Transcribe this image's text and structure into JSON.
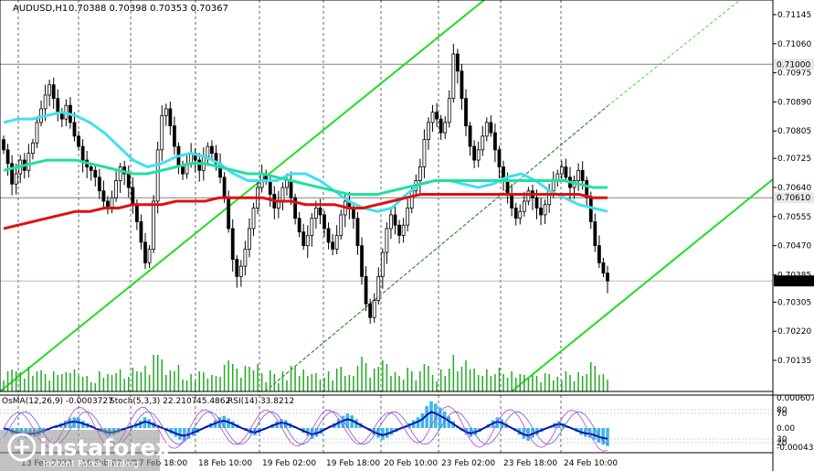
{
  "header": {
    "symbol": "AUDUSD,H1",
    "ohlc": "0.70388 0.70398 0.70353 0.70367"
  },
  "indicator_header": {
    "osma": "OsMA(12,26,9) -0.0003727",
    "stoch": "Stoch(5,3,3) 22.2107",
    "stoch_sig": "45.4862",
    "rsi": "RSI(14) 33.8212"
  },
  "brand": {
    "name": "instaforex",
    "tagline": "Instant Forex Trading"
  },
  "chart_data": {
    "type": "candlestick",
    "y_ticks": [
      "0.71145",
      "0.71060",
      "0.70975",
      "0.70890",
      "0.70805",
      "0.70725",
      "0.70640",
      "0.70555",
      "0.70470",
      "0.70385",
      "0.70305",
      "0.70220",
      "0.70135"
    ],
    "ylim": [
      0.70135,
      0.71145
    ],
    "x_ticks": [
      "13 Feb 2023",
      "16 Feb 02:00",
      "17 Feb 18:00",
      "18 Feb 10:00",
      "19 Feb 02:00",
      "19 Feb 18:00",
      "20 Feb 10:00",
      "23 Feb 02:00",
      "23 Feb 18:00",
      "24 Feb 10:00"
    ],
    "price_labels": [
      {
        "value": 0.71,
        "label": "0.71000",
        "style": "level"
      },
      {
        "value": 0.7061,
        "label": "0.70610",
        "style": "level"
      },
      {
        "value": 0.70367,
        "label": "0.70367",
        "style": "current"
      }
    ],
    "closes": [
      0.7075,
      0.7071,
      0.7065,
      0.7068,
      0.7072,
      0.7069,
      0.7074,
      0.7077,
      0.7083,
      0.7087,
      0.7091,
      0.7094,
      0.709,
      0.7086,
      0.7084,
      0.7088,
      0.7083,
      0.7079,
      0.7076,
      0.7072,
      0.707,
      0.7069,
      0.7067,
      0.7063,
      0.706,
      0.7058,
      0.7061,
      0.7066,
      0.707,
      0.7068,
      0.7064,
      0.7059,
      0.7054,
      0.7048,
      0.7042,
      0.7046,
      0.706,
      0.7075,
      0.7085,
      0.7087,
      0.7082,
      0.7076,
      0.707,
      0.7068,
      0.7071,
      0.7074,
      0.7072,
      0.7069,
      0.7073,
      0.7076,
      0.7074,
      0.7071,
      0.7067,
      0.7061,
      0.7052,
      0.7043,
      0.7038,
      0.7041,
      0.7046,
      0.7052,
      0.7058,
      0.7064,
      0.7068,
      0.7066,
      0.7062,
      0.7058,
      0.706,
      0.7064,
      0.7066,
      0.7061,
      0.7055,
      0.7051,
      0.7047,
      0.705,
      0.7055,
      0.7058,
      0.7056,
      0.7052,
      0.7048,
      0.7046,
      0.705,
      0.7056,
      0.706,
      0.7058,
      0.7055,
      0.7047,
      0.7038,
      0.703,
      0.7026,
      0.7031,
      0.7038,
      0.7045,
      0.7052,
      0.7056,
      0.7053,
      0.705,
      0.7053,
      0.7058,
      0.7063,
      0.7066,
      0.707,
      0.7078,
      0.7083,
      0.7086,
      0.7084,
      0.708,
      0.7083,
      0.709,
      0.7103,
      0.7098,
      0.709,
      0.7082,
      0.7076,
      0.7072,
      0.7075,
      0.7079,
      0.7083,
      0.708,
      0.7075,
      0.707,
      0.7066,
      0.7062,
      0.7058,
      0.7055,
      0.7057,
      0.706,
      0.7063,
      0.7061,
      0.7058,
      0.7056,
      0.7059,
      0.7063,
      0.7066,
      0.7068,
      0.707,
      0.7067,
      0.7064,
      0.7066,
      0.7069,
      0.7066,
      0.7061,
      0.7054,
      0.7047,
      0.7042,
      0.7039,
      0.70367
    ],
    "series": [
      {
        "name": "MA fast",
        "color": "#40e0f0",
        "values": [
          0.7083,
          0.7084,
          0.7084,
          0.7085,
          0.7086,
          0.7085,
          0.7083,
          0.708,
          0.7076,
          0.7072,
          0.707,
          0.7071,
          0.7073,
          0.7074,
          0.7073,
          0.7071,
          0.7068,
          0.7066,
          0.7066,
          0.7066,
          0.7068,
          0.7068,
          0.7066,
          0.7063,
          0.706,
          0.7058,
          0.7057,
          0.7058,
          0.7062,
          0.7065,
          0.7066,
          0.7066,
          0.7065,
          0.7064,
          0.7065,
          0.7067,
          0.7068,
          0.7066,
          0.7063,
          0.7061,
          0.7059,
          0.7058,
          0.7057
        ]
      },
      {
        "name": "MA mid",
        "color": "#20e0a0",
        "values": [
          0.7069,
          0.707,
          0.7071,
          0.7072,
          0.7072,
          0.7072,
          0.7071,
          0.707,
          0.7069,
          0.7068,
          0.7068,
          0.7069,
          0.707,
          0.7071,
          0.7071,
          0.707,
          0.7069,
          0.7068,
          0.7068,
          0.7067,
          0.7066,
          0.7065,
          0.7064,
          0.7063,
          0.7062,
          0.7062,
          0.7062,
          0.7063,
          0.7064,
          0.7065,
          0.7066,
          0.7066,
          0.7066,
          0.7066,
          0.7066,
          0.7066,
          0.7066,
          0.7066,
          0.7066,
          0.7066,
          0.7065,
          0.7064,
          0.7064
        ]
      },
      {
        "name": "MA slow",
        "color": "#e01010",
        "values": [
          0.7052,
          0.7053,
          0.7054,
          0.7055,
          0.7056,
          0.7057,
          0.7057,
          0.7058,
          0.7058,
          0.7059,
          0.7059,
          0.7059,
          0.706,
          0.706,
          0.706,
          0.7061,
          0.7061,
          0.7061,
          0.7061,
          0.706,
          0.706,
          0.7059,
          0.7059,
          0.7059,
          0.7058,
          0.7058,
          0.7059,
          0.706,
          0.7061,
          0.7062,
          0.7062,
          0.7062,
          0.7062,
          0.7062,
          0.7062,
          0.7062,
          0.7062,
          0.7062,
          0.7062,
          0.7062,
          0.7062,
          0.7061,
          0.7061
        ]
      }
    ],
    "indicator": {
      "zero_label": "0.00",
      "top_label": "0.000607",
      "bottom_label": "-0.000435",
      "levels": [
        "80",
        "70",
        "30",
        "20"
      ],
      "histogram": [
        -1e-05,
        -5e-05,
        -0.00012,
        -0.00015,
        -0.00018,
        -0.0002,
        -0.0002,
        -0.00018,
        -0.00015,
        -0.0001,
        -5e-05,
        2e-05,
        6e-05,
        0.0001,
        0.00015,
        0.0002,
        0.00022,
        0.0002,
        0.00015,
        0.0001,
        5e-05,
        -3e-05,
        -8e-05,
        -0.00012,
        -0.00016,
        -0.00014,
        -0.0001,
        -5e-05,
        0.0,
        5e-05,
        0.0001,
        0.00015,
        0.00022,
        0.00018,
        0.00012,
        6e-05,
        0.0,
        -6e-05,
        -0.00012,
        -0.00018,
        -0.00024,
        -0.00026,
        -0.00022,
        -0.00016,
        -0.0001,
        -3e-05,
        4e-05,
        0.0001,
        0.00016,
        0.00022,
        0.00025,
        0.0002,
        0.00014,
        7e-05,
        0.0,
        -6e-05,
        -0.00012,
        -0.00015,
        -0.0001,
        -4e-05,
        2e-05,
        8e-05,
        0.00014,
        0.00018,
        0.00016,
        0.0001,
        4e-05,
        -3e-05,
        -0.0001,
        -0.00016,
        -0.00022,
        -0.00018,
        -0.00012,
        -4e-05,
        4e-05,
        0.0001,
        0.00018,
        0.00025,
        0.0003,
        0.00026,
        0.00018,
        0.0001,
        2e-05,
        -6e-05,
        -0.00014,
        -0.0002,
        -0.00024,
        -0.0002,
        -0.00014,
        -8e-05,
        -2e-05,
        4e-05,
        0.0001,
        0.00016,
        0.00022,
        0.0003,
        0.00045,
        0.00055,
        0.0005,
        0.00042,
        0.00034,
        0.00024,
        0.00014,
        4e-05,
        -6e-05,
        -0.00014,
        -0.00018,
        -0.00014,
        -8e-05,
        0.0,
        8e-05,
        0.00016,
        0.00022,
        0.00018,
        0.0001,
        2e-05,
        -6e-05,
        -0.00014,
        -0.00022,
        -0.00026,
        -0.0002,
        -0.00014,
        -8e-05,
        -2e-05,
        4e-05,
        0.0001,
        0.00014,
        0.0001,
        4e-05,
        -2e-05,
        -8e-05,
        -0.00014,
        -0.00018,
        -0.0002,
        -0.00024,
        -0.0003,
        -0.00034,
        -0.00037
      ]
    }
  }
}
